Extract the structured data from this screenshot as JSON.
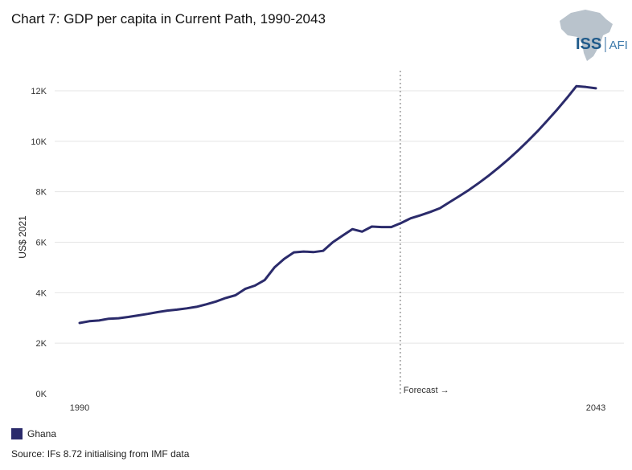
{
  "title": "Chart 7: GDP per capita in Current Path, 1990-2043",
  "logo": {
    "brand": "ISS",
    "suffix": "AFI"
  },
  "source": "Source: IFs 8.72 initialising from IMF data",
  "colors": {
    "series": "#2b2b6b",
    "grid": "#e5e5e5",
    "forecast_line": "#999999"
  },
  "chart_data": {
    "type": "line",
    "title": "Chart 7: GDP per capita in Current Path, 1990-2043",
    "xlabel": "",
    "ylabel": "US$ 2021",
    "xlim": [
      1990,
      2043
    ],
    "ylim": [
      0,
      12000
    ],
    "y_ticks": [
      0,
      2000,
      4000,
      6000,
      8000,
      10000,
      12000
    ],
    "y_tick_labels": [
      "0K",
      "2K",
      "4K",
      "6K",
      "8K",
      "10K",
      "12K"
    ],
    "x_tick_labels": [
      {
        "value": 1990,
        "label": "1990"
      },
      {
        "value": 2043,
        "label": "2043"
      }
    ],
    "forecast": {
      "x": 2023,
      "label": "Forecast →"
    },
    "grid": true,
    "legend_position": "bottom-left",
    "series": [
      {
        "name": "Ghana",
        "color": "#2b2b6b",
        "x": [
          1990,
          1991,
          1992,
          1993,
          1994,
          1995,
          1996,
          1997,
          1998,
          1999,
          2000,
          2001,
          2002,
          2003,
          2004,
          2005,
          2006,
          2007,
          2008,
          2009,
          2010,
          2011,
          2012,
          2013,
          2014,
          2015,
          2016,
          2017,
          2018,
          2019,
          2020,
          2021,
          2022,
          2023,
          2024,
          2025,
          2026,
          2027,
          2028,
          2029,
          2030,
          2031,
          2032,
          2033,
          2034,
          2035,
          2036,
          2037,
          2038,
          2039,
          2040,
          2041,
          2042,
          2043
        ],
        "y": [
          2800,
          2870,
          2900,
          2970,
          2990,
          3040,
          3100,
          3160,
          3230,
          3290,
          3330,
          3380,
          3440,
          3540,
          3650,
          3790,
          3900,
          4150,
          4280,
          4500,
          5000,
          5340,
          5600,
          5630,
          5610,
          5660,
          6000,
          6260,
          6520,
          6420,
          6620,
          6600,
          6600,
          6760,
          6950,
          7070,
          7200,
          7350,
          7590,
          7830,
          8080,
          8350,
          8640,
          8950,
          9280,
          9630,
          10000,
          10390,
          10810,
          11240,
          11700,
          12180,
          12150,
          12100
        ]
      }
    ]
  }
}
